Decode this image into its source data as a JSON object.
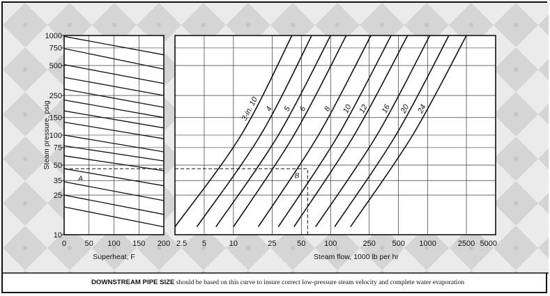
{
  "caption": {
    "bold": "DOWNSTREAM PIPE SIZE",
    "rest": " should be based on this curve to insure correct low-pressure steam velocity and complete water evaporation"
  },
  "colors": {
    "background_pattern": "#d9d9d9",
    "ink": "#111111",
    "panel": "#ffffff"
  },
  "chart_data": [
    {
      "type": "line",
      "panel": "superheat",
      "xlabel": "Superheat, F",
      "ylabel": "Steam pressure, psig",
      "xlim": [
        0,
        200
      ],
      "ylim": [
        10,
        1000
      ],
      "yscale": "log",
      "x_ticks": [
        "0",
        "50",
        "100",
        "150",
        "200"
      ],
      "y_ticks": [
        "10",
        "25",
        "35",
        "50",
        "75",
        "100",
        "150",
        "250",
        "500",
        "750",
        "1000"
      ],
      "series": [
        {
          "values": [
            [
              0,
              980
            ],
            [
              200,
              640
            ]
          ]
        },
        {
          "values": [
            [
              0,
              740
            ],
            [
              200,
              460
            ]
          ]
        },
        {
          "values": [
            [
              0,
              510
            ],
            [
              200,
              330
            ]
          ]
        },
        {
          "values": [
            [
              0,
              380
            ],
            [
              200,
              250
            ]
          ]
        },
        {
          "values": [
            [
              0,
              290
            ],
            [
              200,
              190
            ]
          ]
        },
        {
          "values": [
            [
              0,
              225
            ],
            [
              200,
              150
            ]
          ]
        },
        {
          "values": [
            [
              0,
              175
            ],
            [
              200,
              118
            ]
          ]
        },
        {
          "values": [
            [
              0,
              135
            ],
            [
              200,
              92
            ]
          ]
        },
        {
          "values": [
            [
              0,
              100
            ],
            [
              200,
              68
            ]
          ]
        },
        {
          "values": [
            [
              0,
              78
            ],
            [
              200,
              55
            ]
          ]
        },
        {
          "values": [
            [
              0,
              62
            ],
            [
              200,
              44
            ]
          ]
        },
        {
          "values": [
            [
              0,
              46
            ],
            [
              200,
              31
            ]
          ]
        },
        {
          "values": [
            [
              0,
              34
            ],
            [
              200,
              22
            ]
          ]
        },
        {
          "values": [
            [
              0,
              25
            ],
            [
              200,
              16
            ]
          ]
        },
        {
          "values": [
            [
              0,
              19
            ],
            [
              200,
              12
            ]
          ]
        }
      ],
      "annotations": [
        {
          "label": "A",
          "x": 20,
          "y": 41
        }
      ],
      "guide_pressure": 46
    },
    {
      "type": "line",
      "panel": "flow",
      "xlabel": "Steam flow, 1000 lb per hr",
      "xscale": "log",
      "yscale": "log",
      "xlim": [
        2.5,
        5000
      ],
      "ylim": [
        10,
        1000
      ],
      "x_ticks": [
        "2.5",
        "5",
        "10",
        "25",
        "50",
        "100",
        "250",
        "500",
        "1000",
        "2500",
        "5000"
      ],
      "series": [
        {
          "name": "3-in. 10",
          "values": [
            [
              2.5,
              12
            ],
            [
              12,
              100
            ],
            [
              40,
              1000
            ]
          ]
        },
        {
          "name": "4",
          "values": [
            [
              4.2,
              12
            ],
            [
              19,
              100
            ],
            [
              64,
              1000
            ]
          ]
        },
        {
          "name": "5",
          "values": [
            [
              6.6,
              12
            ],
            [
              29,
              100
            ],
            [
              100,
              1000
            ]
          ]
        },
        {
          "name": "6",
          "values": [
            [
              10,
              12
            ],
            [
              42,
              100
            ],
            [
              145,
              1000
            ]
          ]
        },
        {
          "name": "8",
          "values": [
            [
              18,
              12
            ],
            [
              75,
              100
            ],
            [
              260,
              1000
            ]
          ]
        },
        {
          "name": "10",
          "values": [
            [
              29,
              12
            ],
            [
              120,
              100
            ],
            [
              420,
              1000
            ]
          ]
        },
        {
          "name": "12",
          "values": [
            [
              42,
              12
            ],
            [
              175,
              100
            ],
            [
              620,
              1000
            ]
          ]
        },
        {
          "name": "16",
          "values": [
            [
              70,
              12
            ],
            [
              300,
              100
            ],
            [
              1050,
              1000
            ]
          ]
        },
        {
          "name": "20",
          "values": [
            [
              110,
              12
            ],
            [
              470,
              100
            ],
            [
              1650,
              1000
            ]
          ]
        },
        {
          "name": "24",
          "values": [
            [
              160,
              12
            ],
            [
              700,
              100
            ],
            [
              2500,
              1000
            ]
          ]
        }
      ],
      "annotations": [
        {
          "label": "B",
          "x": 44,
          "y": 41
        }
      ],
      "guide_flow": 58
    }
  ]
}
